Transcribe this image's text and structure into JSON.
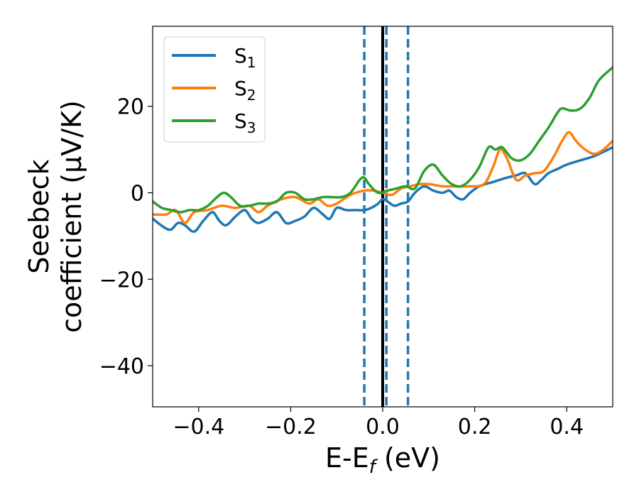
{
  "chart_data": {
    "type": "line",
    "xlabel": "E-E",
    "xlabel_sub": "f",
    "xlabel_unit": " (eV)",
    "ylabel_line1": "Seebeck",
    "ylabel_line2": "coefficient  (μV/K)",
    "xlim": [
      -0.5,
      0.5
    ],
    "ylim": [
      -49.5,
      38.5
    ],
    "xticks": [
      -0.4,
      -0.2,
      0.0,
      0.2,
      0.4
    ],
    "xtick_labels": [
      "−0.4",
      "−0.2",
      "0.0",
      "0.2",
      "0.4"
    ],
    "yticks": [
      -40,
      -20,
      0,
      20
    ],
    "ytick_labels": [
      "−40",
      "−20",
      "0",
      "20"
    ],
    "grid": false,
    "legend_position": "top-left",
    "vlines": [
      {
        "x": -0.04,
        "style": "dashed",
        "color": "#1f77b4"
      },
      {
        "x": 0.0,
        "style": "solid",
        "color": "#000000"
      },
      {
        "x": 0.008,
        "style": "dashed",
        "color": "#1f77b4"
      },
      {
        "x": 0.055,
        "style": "dashed",
        "color": "#1f77b4"
      }
    ],
    "series": [
      {
        "name": "S",
        "sub": "1",
        "color": "#1f77b4",
        "x": [
          -0.5,
          -0.475,
          -0.46,
          -0.445,
          -0.43,
          -0.41,
          -0.39,
          -0.37,
          -0.355,
          -0.34,
          -0.32,
          -0.3,
          -0.285,
          -0.27,
          -0.25,
          -0.23,
          -0.21,
          -0.19,
          -0.17,
          -0.15,
          -0.13,
          -0.115,
          -0.1,
          -0.08,
          -0.06,
          -0.04,
          -0.025,
          -0.01,
          0.0,
          0.01,
          0.025,
          0.04,
          0.055,
          0.07,
          0.09,
          0.11,
          0.13,
          0.145,
          0.16,
          0.175,
          0.19,
          0.21,
          0.24,
          0.27,
          0.29,
          0.31,
          0.33,
          0.345,
          0.36,
          0.38,
          0.4,
          0.43,
          0.46,
          0.5
        ],
        "y": [
          -6,
          -8,
          -8.5,
          -7,
          -7.5,
          -9,
          -6.5,
          -4.5,
          -6.5,
          -7.5,
          -5.5,
          -4,
          -6,
          -7,
          -6,
          -4.5,
          -7,
          -6.5,
          -5.5,
          -3.5,
          -5,
          -6,
          -3.5,
          -4,
          -4,
          -4,
          -3.5,
          -2.5,
          -1.5,
          -2,
          -3,
          -2.5,
          -2,
          0,
          1.5,
          0.5,
          0,
          0.5,
          -1,
          -1.5,
          0,
          1.5,
          2.5,
          3.5,
          4,
          4.5,
          2,
          3,
          4.5,
          5.5,
          6.5,
          7.5,
          8.5,
          10.5
        ]
      },
      {
        "name": "S",
        "sub": "2",
        "color": "#ff7f0e",
        "x": [
          -0.5,
          -0.47,
          -0.45,
          -0.43,
          -0.41,
          -0.38,
          -0.35,
          -0.32,
          -0.29,
          -0.27,
          -0.25,
          -0.22,
          -0.19,
          -0.16,
          -0.14,
          -0.12,
          -0.1,
          -0.07,
          -0.04,
          -0.02,
          0.0,
          0.02,
          0.04,
          0.06,
          0.08,
          0.1,
          0.13,
          0.16,
          0.19,
          0.22,
          0.24,
          0.255,
          0.27,
          0.29,
          0.31,
          0.33,
          0.35,
          0.37,
          0.39,
          0.405,
          0.42,
          0.44,
          0.46,
          0.48,
          0.5
        ],
        "y": [
          -5,
          -5,
          -4,
          -7,
          -4.5,
          -4,
          -3,
          -3.5,
          -3,
          -4.5,
          -3,
          -1.5,
          -1,
          -2.5,
          -1.5,
          -3,
          -2.5,
          -0.5,
          0.5,
          0.5,
          0,
          -0.5,
          1,
          1.5,
          2,
          2,
          1.5,
          1.5,
          1.5,
          2,
          6,
          10,
          8,
          3,
          4,
          4.5,
          5,
          8,
          12,
          14,
          12,
          10,
          9,
          10,
          12
        ]
      },
      {
        "name": "S",
        "sub": "3",
        "color": "#2ca02c",
        "x": [
          -0.5,
          -0.48,
          -0.46,
          -0.44,
          -0.42,
          -0.4,
          -0.38,
          -0.36,
          -0.345,
          -0.33,
          -0.31,
          -0.29,
          -0.27,
          -0.25,
          -0.23,
          -0.21,
          -0.19,
          -0.17,
          -0.15,
          -0.13,
          -0.11,
          -0.09,
          -0.07,
          -0.05,
          -0.04,
          -0.03,
          -0.01,
          0.01,
          0.03,
          0.05,
          0.07,
          0.09,
          0.11,
          0.13,
          0.15,
          0.17,
          0.19,
          0.21,
          0.23,
          0.245,
          0.26,
          0.28,
          0.3,
          0.32,
          0.34,
          0.36,
          0.38,
          0.39,
          0.41,
          0.43,
          0.45,
          0.47,
          0.5
        ],
        "y": [
          -2,
          -3.5,
          -4,
          -4.5,
          -4,
          -4,
          -3,
          -1,
          0,
          -1,
          -3,
          -3,
          -2.5,
          -2.5,
          -2,
          0,
          0,
          -1.5,
          -1.5,
          -1,
          -1,
          -1,
          0,
          3,
          3.5,
          2,
          0,
          0.5,
          1,
          1.5,
          1,
          5,
          6.5,
          4,
          2,
          1.5,
          3,
          6,
          10.5,
          10,
          10.5,
          8,
          7.5,
          9,
          12,
          15,
          18.5,
          19.5,
          19,
          19.5,
          22,
          26,
          29
        ]
      }
    ]
  }
}
